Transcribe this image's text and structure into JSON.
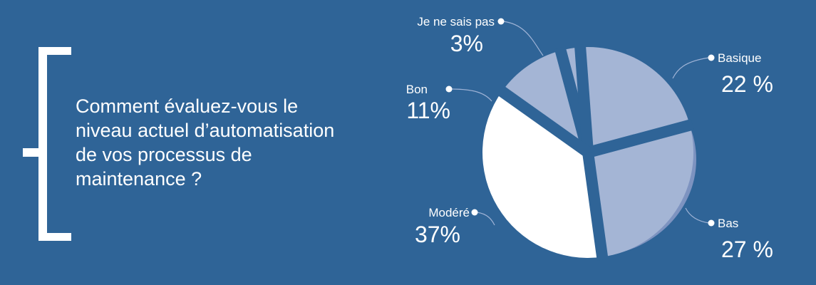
{
  "question": {
    "lines": [
      "Comment évaluez-vous le",
      "niveau actuel d’automatisation",
      "de vos processus de",
      "maintenance ?"
    ]
  },
  "colors": {
    "background": "#2f6497",
    "slice_light": "#a4b5d5",
    "slice_white": "#ffffff",
    "slice_shadow": "#7d93c0",
    "text": "#ffffff"
  },
  "chart_data": {
    "type": "pie",
    "title": "",
    "slices": [
      {
        "name": "Je ne sais pas",
        "value": 3,
        "label": "3%",
        "color": "#a4b5d5"
      },
      {
        "name": "Basique",
        "value": 22,
        "label": "22 %",
        "color": "#a4b5d5"
      },
      {
        "name": "Bas",
        "value": 27,
        "label": "27 %",
        "color": "#a4b5d5"
      },
      {
        "name": "Modéré",
        "value": 37,
        "label": "37%",
        "color": "#ffffff"
      },
      {
        "name": "Bon",
        "value": 11,
        "label": "11%",
        "color": "#a4b5d5"
      }
    ],
    "start_angle_deg": -15,
    "direction": "clockwise",
    "legend": "none",
    "slice_labels": "outside-with-leader-lines"
  }
}
